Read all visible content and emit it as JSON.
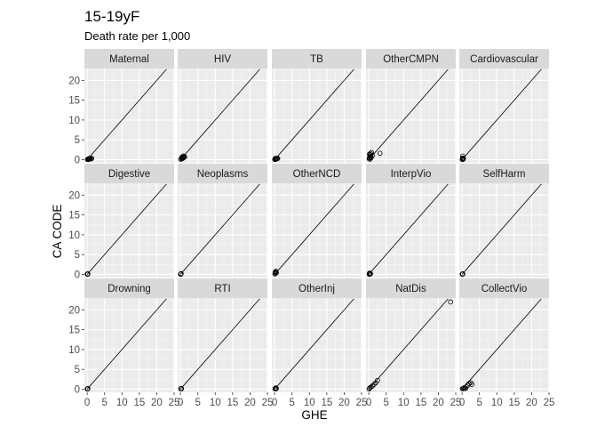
{
  "chart_data": {
    "type": "scatter",
    "title": "15-19yF",
    "subtitle": "Death rate per 1,000",
    "xlabel": "GHE",
    "ylabel": "CA CODE",
    "xlim": [
      -0.8,
      25
    ],
    "ylim": [
      -0.8,
      23
    ],
    "x_ticks": [
      0,
      5,
      10,
      15,
      20,
      25
    ],
    "y_ticks": [
      0,
      5,
      10,
      15,
      20
    ],
    "grid": true,
    "reference_line": "y = x",
    "colors": {
      "panel_bg": "#ebebeb",
      "strip_bg": "#d9d9d9",
      "grid_major": "#ffffff",
      "points": "#000000",
      "line": "#000000"
    },
    "facets": [
      {
        "name": "Maternal",
        "points": [
          [
            0.1,
            0.05
          ],
          [
            0.2,
            0.1
          ],
          [
            0.3,
            0.15
          ],
          [
            0.5,
            0.2
          ],
          [
            0.7,
            0.15
          ],
          [
            0.9,
            0.25
          ],
          [
            1.1,
            0.2
          ],
          [
            0.4,
            0.05
          ],
          [
            1.3,
            0.3
          ],
          [
            0.6,
            0.3
          ]
        ]
      },
      {
        "name": "HIV",
        "points": [
          [
            0.1,
            0.1
          ],
          [
            0.3,
            0.2
          ],
          [
            0.5,
            0.4
          ],
          [
            0.7,
            0.6
          ],
          [
            0.9,
            0.5
          ],
          [
            1.1,
            0.8
          ],
          [
            0.4,
            0.6
          ],
          [
            0.8,
            0.9
          ],
          [
            1.2,
            0.7
          ],
          [
            0.6,
            0.3
          ]
        ]
      },
      {
        "name": "TB",
        "points": [
          [
            0.05,
            0.05
          ],
          [
            0.1,
            0.1
          ],
          [
            0.2,
            0.15
          ],
          [
            0.3,
            0.2
          ],
          [
            0.5,
            0.3
          ],
          [
            0.7,
            0.25
          ],
          [
            0.9,
            0.3
          ],
          [
            0.2,
            0.3
          ],
          [
            0.4,
            0.1
          ]
        ]
      },
      {
        "name": "OtherCMPN",
        "points": [
          [
            0.1,
            0.2
          ],
          [
            0.2,
            0.5
          ],
          [
            0.3,
            0.8
          ],
          [
            0.4,
            1.2
          ],
          [
            0.5,
            1.6
          ],
          [
            0.6,
            0.4
          ],
          [
            0.2,
            1.4
          ],
          [
            0.8,
            1.8
          ],
          [
            1.0,
            1.0
          ],
          [
            0.3,
            0.1
          ],
          [
            0.7,
            0.6
          ],
          [
            3.2,
            1.6
          ]
        ]
      },
      {
        "name": "Cardiovascular",
        "points": [
          [
            0.05,
            0.05
          ],
          [
            0.1,
            0.2
          ],
          [
            0.15,
            0.4
          ],
          [
            0.2,
            0.9
          ],
          [
            0.3,
            0.1
          ],
          [
            0.4,
            0.3
          ]
        ]
      },
      {
        "name": "Digestive",
        "points": [
          [
            0.05,
            0.05
          ],
          [
            0.1,
            0.1
          ],
          [
            0.15,
            0.15
          ],
          [
            0.2,
            0.1
          ]
        ]
      },
      {
        "name": "Neoplasms",
        "points": [
          [
            0.05,
            0.05
          ],
          [
            0.1,
            0.1
          ],
          [
            0.15,
            0.15
          ],
          [
            0.2,
            0.2
          ]
        ]
      },
      {
        "name": "OtherNCD",
        "points": [
          [
            0.1,
            0.1
          ],
          [
            0.2,
            0.3
          ],
          [
            0.3,
            0.5
          ],
          [
            0.4,
            0.8
          ],
          [
            0.2,
            0.6
          ],
          [
            0.5,
            0.4
          ]
        ]
      },
      {
        "name": "InterpVio",
        "points": [
          [
            0.1,
            0.05
          ],
          [
            0.2,
            0.15
          ],
          [
            0.3,
            0.1
          ],
          [
            0.4,
            0.2
          ],
          [
            0.5,
            0.15
          ],
          [
            0.2,
            0.3
          ]
        ]
      },
      {
        "name": "SelfHarm",
        "points": [
          [
            0.05,
            0.05
          ],
          [
            0.1,
            0.1
          ],
          [
            0.15,
            0.15
          ],
          [
            0.2,
            0.1
          ]
        ]
      },
      {
        "name": "Drowning",
        "points": [
          [
            0.05,
            0.05
          ],
          [
            0.1,
            0.1
          ],
          [
            0.15,
            0.15
          ],
          [
            0.2,
            0.1
          ]
        ]
      },
      {
        "name": "RTI",
        "points": [
          [
            0.1,
            0.1
          ],
          [
            0.2,
            0.15
          ],
          [
            0.25,
            0.2
          ],
          [
            0.3,
            0.1
          ]
        ]
      },
      {
        "name": "OtherInj",
        "points": [
          [
            0.1,
            0.1
          ],
          [
            0.2,
            0.2
          ],
          [
            0.3,
            0.3
          ],
          [
            0.4,
            0.1
          ],
          [
            0.5,
            0.2
          ]
        ]
      },
      {
        "name": "NatDis",
        "points": [
          [
            0.1,
            0.05
          ],
          [
            0.3,
            0.3
          ],
          [
            0.6,
            0.5
          ],
          [
            1.0,
            0.8
          ],
          [
            1.5,
            1.2
          ],
          [
            2.0,
            1.6
          ],
          [
            2.5,
            2.2
          ],
          [
            23.5,
            22.0
          ]
        ]
      },
      {
        "name": "CollectVio",
        "points": [
          [
            0.1,
            0.1
          ],
          [
            0.3,
            0.2
          ],
          [
            0.5,
            0.3
          ],
          [
            0.8,
            0.2
          ],
          [
            1.2,
            0.6
          ],
          [
            1.6,
            1.0
          ],
          [
            2.0,
            1.4
          ],
          [
            2.5,
            1.6
          ],
          [
            2.8,
            1.2
          ],
          [
            1.0,
            0.2
          ]
        ]
      }
    ]
  }
}
